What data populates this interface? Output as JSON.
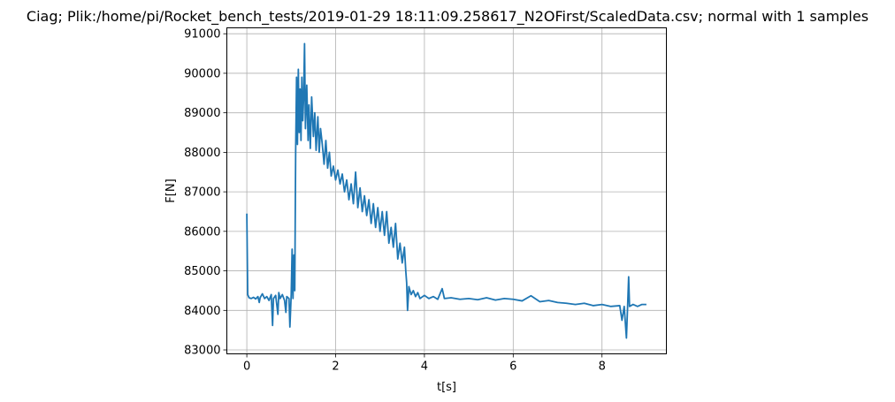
{
  "chart_data": {
    "type": "line",
    "title": "Ciag; Plik:/home/pi/Rocket_bench_tests/2019-01-29 18:11:09.258617_N2OFirst/ScaledData.csv; normal with 1 samples",
    "xlabel": "t[s]",
    "ylabel": "F[N]",
    "xlim": [
      -0.45,
      9.45
    ],
    "ylim": [
      82900,
      91150
    ],
    "xticks": [
      0,
      2,
      4,
      6,
      8
    ],
    "yticks": [
      83000,
      84000,
      85000,
      86000,
      87000,
      88000,
      89000,
      90000,
      91000
    ],
    "grid": true,
    "legend": "none",
    "series": [
      {
        "color": "#1f77b4",
        "points": [
          [
            0.0,
            86450
          ],
          [
            0.02,
            84400
          ],
          [
            0.05,
            84320
          ],
          [
            0.1,
            84300
          ],
          [
            0.15,
            84330
          ],
          [
            0.2,
            84290
          ],
          [
            0.25,
            84350
          ],
          [
            0.28,
            84200
          ],
          [
            0.3,
            84320
          ],
          [
            0.35,
            84420
          ],
          [
            0.4,
            84300
          ],
          [
            0.45,
            84350
          ],
          [
            0.5,
            84250
          ],
          [
            0.55,
            84400
          ],
          [
            0.58,
            83620
          ],
          [
            0.6,
            84300
          ],
          [
            0.65,
            84380
          ],
          [
            0.7,
            83900
          ],
          [
            0.72,
            84450
          ],
          [
            0.75,
            84300
          ],
          [
            0.8,
            84400
          ],
          [
            0.85,
            84250
          ],
          [
            0.88,
            83950
          ],
          [
            0.9,
            84350
          ],
          [
            0.95,
            84300
          ],
          [
            0.97,
            83580
          ],
          [
            1.0,
            84400
          ],
          [
            1.02,
            85550
          ],
          [
            1.04,
            84300
          ],
          [
            1.06,
            85400
          ],
          [
            1.08,
            84500
          ],
          [
            1.1,
            88000
          ],
          [
            1.12,
            89900
          ],
          [
            1.14,
            88200
          ],
          [
            1.16,
            90100
          ],
          [
            1.18,
            88500
          ],
          [
            1.2,
            89600
          ],
          [
            1.22,
            88300
          ],
          [
            1.24,
            89900
          ],
          [
            1.26,
            88800
          ],
          [
            1.28,
            89400
          ],
          [
            1.3,
            90750
          ],
          [
            1.32,
            88600
          ],
          [
            1.35,
            89700
          ],
          [
            1.38,
            88300
          ],
          [
            1.4,
            89200
          ],
          [
            1.43,
            88100
          ],
          [
            1.46,
            89400
          ],
          [
            1.5,
            88400
          ],
          [
            1.53,
            89000
          ],
          [
            1.56,
            88050
          ],
          [
            1.6,
            88900
          ],
          [
            1.63,
            88000
          ],
          [
            1.66,
            88600
          ],
          [
            1.7,
            88200
          ],
          [
            1.74,
            87700
          ],
          [
            1.78,
            88300
          ],
          [
            1.82,
            87600
          ],
          [
            1.86,
            88000
          ],
          [
            1.9,
            87400
          ],
          [
            1.95,
            87650
          ],
          [
            2.0,
            87300
          ],
          [
            2.05,
            87550
          ],
          [
            2.1,
            87200
          ],
          [
            2.15,
            87450
          ],
          [
            2.2,
            87000
          ],
          [
            2.25,
            87300
          ],
          [
            2.3,
            86800
          ],
          [
            2.35,
            87200
          ],
          [
            2.4,
            86700
          ],
          [
            2.45,
            87500
          ],
          [
            2.5,
            86600
          ],
          [
            2.55,
            87100
          ],
          [
            2.6,
            86500
          ],
          [
            2.65,
            86900
          ],
          [
            2.7,
            86400
          ],
          [
            2.75,
            86800
          ],
          [
            2.8,
            86200
          ],
          [
            2.85,
            86700
          ],
          [
            2.9,
            86100
          ],
          [
            2.95,
            86600
          ],
          [
            3.0,
            86000
          ],
          [
            3.05,
            86500
          ],
          [
            3.1,
            85900
          ],
          [
            3.15,
            86500
          ],
          [
            3.2,
            85700
          ],
          [
            3.25,
            86100
          ],
          [
            3.3,
            85600
          ],
          [
            3.35,
            86200
          ],
          [
            3.4,
            85300
          ],
          [
            3.45,
            85700
          ],
          [
            3.5,
            85200
          ],
          [
            3.55,
            85600
          ],
          [
            3.58,
            85000
          ],
          [
            3.6,
            84700
          ],
          [
            3.62,
            84000
          ],
          [
            3.65,
            84600
          ],
          [
            3.7,
            84400
          ],
          [
            3.75,
            84500
          ],
          [
            3.8,
            84350
          ],
          [
            3.85,
            84450
          ],
          [
            3.9,
            84300
          ],
          [
            4.0,
            84380
          ],
          [
            4.1,
            84300
          ],
          [
            4.2,
            84350
          ],
          [
            4.3,
            84280
          ],
          [
            4.4,
            84550
          ],
          [
            4.45,
            84300
          ],
          [
            4.6,
            84320
          ],
          [
            4.8,
            84280
          ],
          [
            5.0,
            84300
          ],
          [
            5.2,
            84270
          ],
          [
            5.4,
            84320
          ],
          [
            5.6,
            84260
          ],
          [
            5.8,
            84300
          ],
          [
            6.0,
            84280
          ],
          [
            6.2,
            84240
          ],
          [
            6.4,
            84370
          ],
          [
            6.6,
            84220
          ],
          [
            6.8,
            84250
          ],
          [
            7.0,
            84200
          ],
          [
            7.2,
            84180
          ],
          [
            7.4,
            84150
          ],
          [
            7.6,
            84180
          ],
          [
            7.8,
            84120
          ],
          [
            8.0,
            84150
          ],
          [
            8.2,
            84100
          ],
          [
            8.4,
            84120
          ],
          [
            8.45,
            83750
          ],
          [
            8.5,
            84100
          ],
          [
            8.55,
            83300
          ],
          [
            8.58,
            84200
          ],
          [
            8.6,
            84850
          ],
          [
            8.62,
            84100
          ],
          [
            8.7,
            84150
          ],
          [
            8.8,
            84100
          ],
          [
            8.9,
            84150
          ],
          [
            9.0,
            84150
          ]
        ]
      }
    ]
  }
}
